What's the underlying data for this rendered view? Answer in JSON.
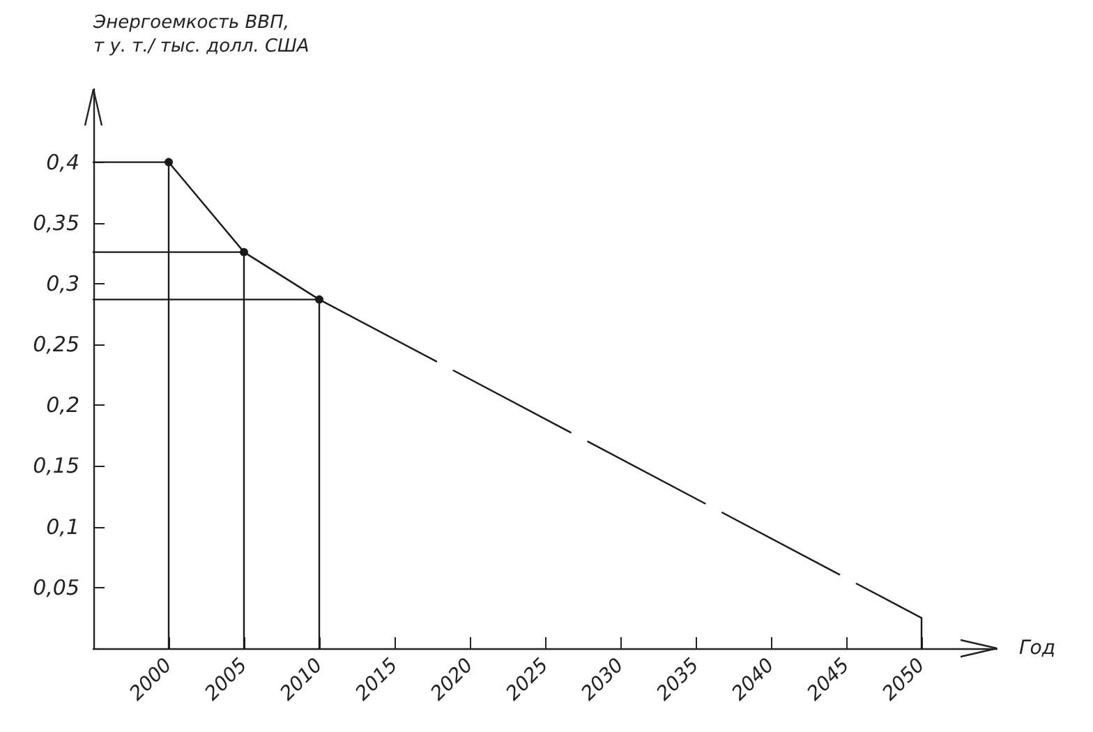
{
  "chart_data": {
    "type": "line",
    "xlabel": "Год",
    "ylabel": "Энергоемкость ВВП,\nт у. т./ тыс. долл. США",
    "series": [
      {
        "color": "#1a1a1a",
        "x": [
          2000,
          2005,
          2010
        ],
        "values": [
          0.4,
          0.326,
          0.287
        ],
        "marker": "circle",
        "line_style": "solid"
      },
      {
        "color": "#1a1a1a",
        "x": [
          2010,
          2050
        ],
        "values": [
          0.287,
          0.025
        ],
        "marker": "none",
        "line_style": "dashed"
      },
      {
        "color": "#1a1a1a",
        "x": [
          2000,
          2000
        ],
        "values": [
          0,
          0.4
        ],
        "marker": "none",
        "line_style": "solid"
      },
      {
        "color": "#1a1a1a",
        "x": [
          2005,
          2005
        ],
        "values": [
          0,
          0.326
        ],
        "marker": "none",
        "line_style": "solid"
      },
      {
        "color": "#1a1a1a",
        "x": [
          2010,
          2010
        ],
        "values": [
          0,
          0.287
        ],
        "marker": "none",
        "line_style": "solid"
      },
      {
        "color": "#1a1a1a",
        "x": [
          2050,
          2050
        ],
        "values": [
          0,
          0.025
        ],
        "marker": "none",
        "line_style": "solid"
      },
      {
        "color": "#1a1a1a",
        "x": [
          1995,
          2000
        ],
        "values": [
          0.4,
          0.4
        ],
        "marker": "none",
        "line_style": "solid"
      },
      {
        "color": "#1a1a1a",
        "x": [
          1995,
          2005
        ],
        "values": [
          0.326,
          0.326
        ],
        "marker": "none",
        "line_style": "solid"
      },
      {
        "color": "#1a1a1a",
        "x": [
          1995,
          2010
        ],
        "values": [
          0.287,
          0.287
        ],
        "marker": "none",
        "line_style": "solid"
      }
    ],
    "xlim": [
      1995,
      2055
    ],
    "xticks": [
      2000,
      2005,
      2010,
      2015,
      2020,
      2025,
      2030,
      2035,
      2040,
      2045,
      2050
    ],
    "ylim": [
      0,
      0.46
    ],
    "yticks": [
      {
        "value": 0.05,
        "label": "0,05"
      },
      {
        "value": 0.1,
        "label": "0,1"
      },
      {
        "value": 0.15,
        "label": "0,15"
      },
      {
        "value": 0.2,
        "label": "0,2"
      },
      {
        "value": 0.25,
        "label": "0,25"
      },
      {
        "value": 0.3,
        "label": "0,3"
      },
      {
        "value": 0.35,
        "label": "0,35"
      },
      {
        "value": 0.4,
        "label": "0,4"
      }
    ],
    "grid": false
  }
}
